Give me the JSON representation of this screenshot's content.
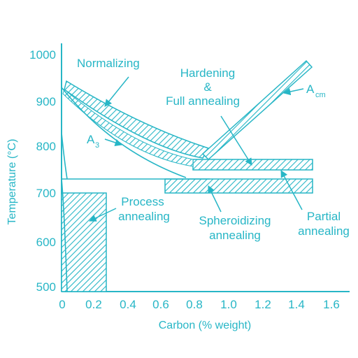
{
  "colors": {
    "ink": "#27b6c6",
    "background": "#ffffff"
  },
  "axes": {
    "xlabel": "Carbon (% weight)",
    "ylabel": "Temperature (°C)",
    "x_ticks": [
      "0",
      "0.2",
      "0.4",
      "0.6",
      "0.8",
      "1.0",
      "1.2",
      "1.4",
      "1.6"
    ],
    "y_ticks": [
      "1000",
      "900",
      "800",
      "700",
      "600",
      "500"
    ],
    "xlim": [
      0,
      1.6
    ],
    "ylim": [
      500,
      1000
    ]
  },
  "curves": {
    "a3": {
      "label": "A",
      "subscript": "3"
    },
    "acm": {
      "label": "A",
      "subscript": "cm"
    }
  },
  "regions": {
    "normalizing": "Normalizing",
    "hardening_line1": "Hardening",
    "hardening_line2": "&",
    "hardening_line3": "Full annealing",
    "process_line1": "Process",
    "process_line2": "annealing",
    "spheroidizing_line1": "Spheroidizing",
    "spheroidizing_line2": "annealing",
    "partial_line1": "Partial",
    "partial_line2": "annealing"
  }
}
